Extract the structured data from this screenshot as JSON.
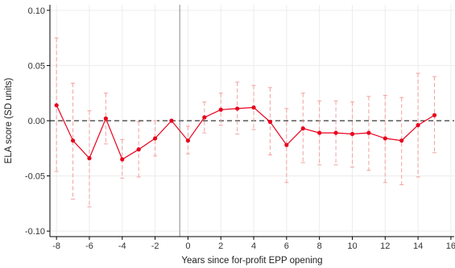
{
  "chart_data": {
    "type": "line",
    "title": "",
    "xlabel": "Years since for-profit EPP opening",
    "ylabel": "ELA score (SD units)",
    "xlim": [
      -8.4,
      16.2
    ],
    "ylim": [
      -0.105,
      0.105
    ],
    "x_ticks": [
      -8,
      -6,
      -4,
      -2,
      0,
      2,
      4,
      6,
      8,
      10,
      12,
      14,
      16
    ],
    "y_ticks": [
      -0.1,
      -0.05,
      0,
      0.05,
      0.1
    ],
    "x_tick_labels": [
      "-8",
      "-6",
      "-4",
      "-2",
      "0",
      "2",
      "4",
      "6",
      "8",
      "10",
      "12",
      "14",
      "16"
    ],
    "y_tick_labels": [
      "-0.10",
      "-0.05",
      "0.00",
      "0.05",
      "0.10"
    ],
    "grid": true,
    "vertical_reference_line_x": -0.5,
    "horizontal_reference_line_y": 0,
    "colors": {
      "series": "#e8001c",
      "error_bars": "#f4a0a0",
      "grid": "#ececec",
      "reference": "#000000",
      "vertical_line": "#888888"
    },
    "series": [
      {
        "x": [
          -8,
          -7,
          -6,
          -5,
          -4,
          -3,
          -2,
          -1,
          0,
          1,
          2,
          3,
          4,
          5,
          6,
          7,
          8,
          9,
          10,
          11,
          12,
          13,
          14,
          15
        ],
        "y": [
          0.014,
          -0.018,
          -0.034,
          0.002,
          -0.035,
          -0.026,
          -0.016,
          0.0,
          -0.018,
          0.003,
          0.01,
          0.011,
          0.012,
          -0.001,
          -0.022,
          -0.007,
          -0.011,
          -0.011,
          -0.012,
          -0.011,
          -0.016,
          -0.018,
          -0.004,
          0.005
        ],
        "ci_low": [
          -0.046,
          -0.071,
          -0.078,
          -0.021,
          -0.052,
          -0.051,
          -0.032,
          null,
          -0.03,
          -0.011,
          -0.004,
          -0.012,
          -0.008,
          -0.031,
          -0.056,
          -0.038,
          -0.04,
          -0.04,
          -0.042,
          -0.045,
          -0.056,
          -0.058,
          -0.051,
          -0.029
        ],
        "ci_high": [
          0.075,
          0.034,
          0.009,
          0.025,
          -0.017,
          -0.001,
          0.0,
          null,
          -0.005,
          0.017,
          0.025,
          0.035,
          0.032,
          0.03,
          0.011,
          0.025,
          0.018,
          0.018,
          0.017,
          0.022,
          0.023,
          0.021,
          0.043,
          0.04
        ]
      }
    ]
  }
}
